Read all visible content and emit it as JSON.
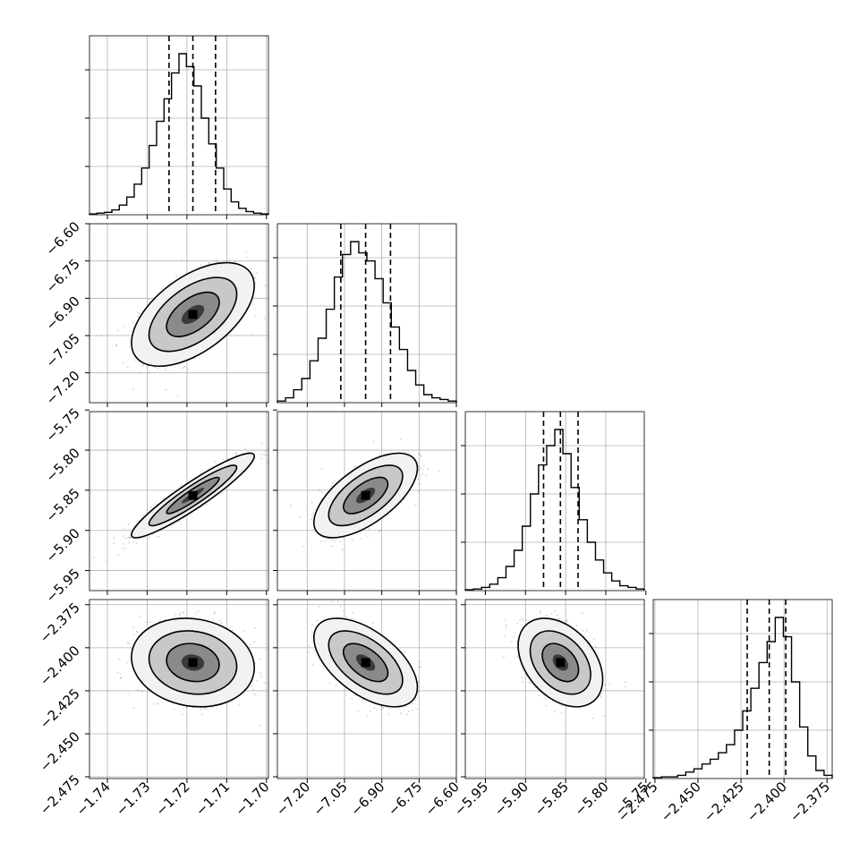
{
  "chart_data": {
    "type": "corner",
    "n_params": 4,
    "grid": true,
    "quantile_lines": "dashed",
    "params": [
      {
        "range": [
          -1.7445,
          -1.6995
        ],
        "ticks": [
          -1.74,
          -1.73,
          -1.72,
          -1.71,
          -1.7
        ],
        "tick_labels": [
          "−1.74",
          "−1.73",
          "−1.72",
          "−1.71",
          "−1.70"
        ],
        "quantiles": [
          -1.7245,
          -1.7185,
          -1.7128
        ],
        "hist": [
          0.5,
          1,
          1.5,
          3,
          6,
          11,
          19,
          29,
          43,
          58,
          72,
          88,
          100,
          92,
          80,
          60,
          44,
          29,
          16,
          8,
          4,
          2,
          1,
          0.5
        ]
      },
      {
        "range": [
          -7.32,
          -6.6
        ],
        "ticks": [
          -7.2,
          -7.05,
          -6.9,
          -6.75,
          -6.6
        ],
        "tick_labels": [
          "−7.20",
          "−7.05",
          "−6.90",
          "−6.75",
          "−6.60"
        ],
        "quantiles": [
          -7.065,
          -6.965,
          -6.865
        ],
        "hist": [
          1,
          3,
          8,
          15,
          26,
          40,
          58,
          78,
          92,
          100,
          93,
          88,
          77,
          62,
          47,
          33,
          20,
          11,
          5,
          3,
          2,
          1
        ]
      },
      {
        "range": [
          -5.975,
          -5.752
        ],
        "ticks": [
          -5.95,
          -5.9,
          -5.85,
          -5.8,
          -5.75
        ],
        "tick_labels": [
          "−5.95",
          "−5.90",
          "−5.85",
          "−5.80",
          "−5.75"
        ],
        "quantiles": [
          -5.8775,
          -5.8565,
          -5.8345
        ],
        "hist": [
          0.5,
          1,
          2,
          4,
          8,
          15,
          25,
          40,
          60,
          78,
          90,
          100,
          85,
          64,
          44,
          30,
          19,
          11,
          6,
          3,
          2,
          1
        ]
      },
      {
        "range": [
          -2.476,
          -2.372
        ],
        "ticks": [
          -2.475,
          -2.45,
          -2.425,
          -2.4,
          -2.375
        ],
        "tick_labels": [
          "−2.475",
          "−2.450",
          "−2.425",
          "−2.400",
          "−2.375"
        ],
        "quantiles": [
          -2.4214,
          -2.4086,
          -2.399
        ],
        "hist": [
          0.5,
          1,
          1,
          2,
          4,
          6,
          9,
          12,
          16,
          21,
          30,
          42,
          56,
          72,
          85,
          100,
          88,
          60,
          32,
          14,
          5,
          2
        ]
      }
    ],
    "pairs": [
      {
        "row": 1,
        "col": 0,
        "mean": [
          -1.7185,
          -6.965
        ],
        "sd": [
          0.0063,
          0.085
        ],
        "rho": 0.55
      },
      {
        "row": 2,
        "col": 0,
        "mean": [
          -1.7185,
          -5.8565
        ],
        "sd": [
          0.0063,
          0.0215
        ],
        "rho": 0.93
      },
      {
        "row": 2,
        "col": 1,
        "mean": [
          -6.965,
          -5.8565
        ],
        "sd": [
          0.085,
          0.0215
        ],
        "rho": 0.64
      },
      {
        "row": 3,
        "col": 0,
        "mean": [
          -1.7185,
          -2.4086
        ],
        "sd": [
          0.0063,
          0.0105
        ],
        "rho": -0.12
      },
      {
        "row": 3,
        "col": 1,
        "mean": [
          -6.965,
          -2.4086
        ],
        "sd": [
          0.085,
          0.0105
        ],
        "rho": -0.56
      },
      {
        "row": 3,
        "col": 2,
        "mean": [
          -5.8565,
          -2.4086
        ],
        "sd": [
          0.0215,
          0.0105
        ],
        "rho": -0.38
      }
    ]
  }
}
